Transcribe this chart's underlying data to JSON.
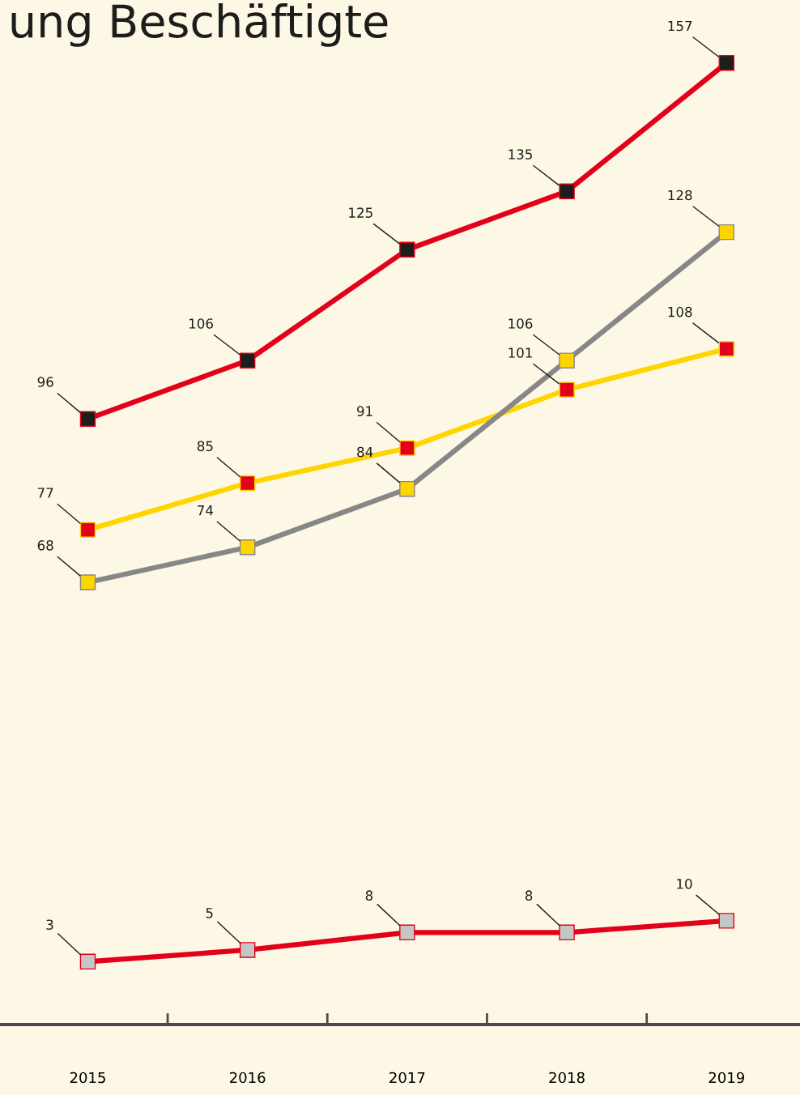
{
  "chart_data": {
    "type": "line",
    "title": "ung Beschäftigte",
    "categories": [
      "2015",
      "2016",
      "2017",
      "2018",
      "2019"
    ],
    "series": [
      {
        "color": "#e2001a",
        "colors": [
          "#1d1d1b",
          "#1d1d1b",
          "#1d1d1b",
          "#1d1d1b",
          "#1d1d1b"
        ],
        "values": [
          96,
          106,
          125,
          135,
          157
        ]
      },
      {
        "color": "#ffd500",
        "colors": [
          "#e2001a",
          "#e2001a",
          "#e2001a",
          "#e2001a",
          "#e2001a"
        ],
        "values": [
          77,
          85,
          91,
          101,
          108
        ]
      },
      {
        "color": "#878787",
        "colors": [
          "#ffd500",
          "#ffd500",
          "#ffd500",
          "#ffd500",
          "#ffd500"
        ],
        "values": [
          68,
          74,
          84,
          106,
          128
        ]
      },
      {
        "color": "#e2001a",
        "colors": [
          "#c6c6c6",
          "#c6c6c6",
          "#c6c6c6",
          "#c6c6c6",
          "#c6c6c6"
        ],
        "values": [
          3,
          5,
          8,
          8,
          10
        ]
      }
    ],
    "data_labels": true,
    "marker": "square",
    "line_style": "solid",
    "grid": false,
    "legend": false,
    "tick_labels": "x"
  }
}
